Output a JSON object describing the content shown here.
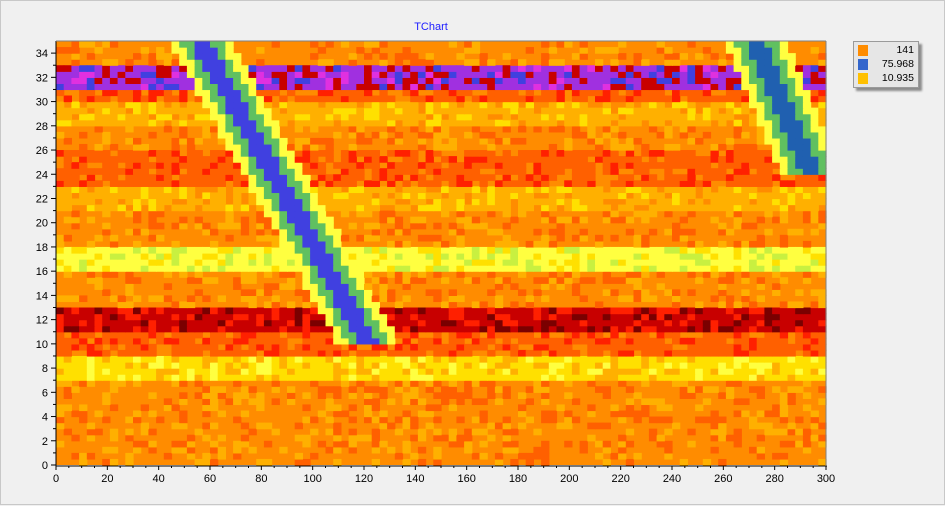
{
  "chart_data": {
    "type": "heatmap",
    "title": "TChart",
    "xlabel": "",
    "ylabel": "",
    "xlim": [
      0,
      300
    ],
    "ylim": [
      0,
      35
    ],
    "x_ticks": [
      "0",
      "20",
      "40",
      "60",
      "80",
      "100",
      "120",
      "140",
      "160",
      "180",
      "200",
      "220",
      "240",
      "260",
      "280",
      "300"
    ],
    "y_ticks": [
      "0",
      "2",
      "4",
      "6",
      "8",
      "10",
      "12",
      "14",
      "16",
      "18",
      "20",
      "22",
      "24",
      "26",
      "28",
      "30",
      "32",
      "34"
    ],
    "legend": {
      "position": "top-right",
      "entries": [
        {
          "label": "141",
          "color": "#ff8c00"
        },
        {
          "label": "75.968",
          "color": "#3366cc"
        },
        {
          "label": "10.935",
          "color": "#ffc000"
        }
      ]
    },
    "color_scale": [
      "#7a0000",
      "#c80000",
      "#ff2000",
      "#ff6000",
      "#ff8c00",
      "#ffb000",
      "#ffe000",
      "#ffff40",
      "#c8f040",
      "#60c060",
      "#30a070",
      "#2060b0",
      "#4040e0",
      "#a030e0",
      "#e030e0"
    ],
    "base_level": 4,
    "bands": [
      {
        "y_from": 0,
        "y_to": 8,
        "level": 4
      },
      {
        "y_from": 7,
        "y_to": 9,
        "level": 6
      },
      {
        "y_from": 9,
        "y_to": 11,
        "level": 3
      },
      {
        "y_from": 11,
        "y_to": 13,
        "level": 1
      },
      {
        "y_from": 13,
        "y_to": 16,
        "level": 4
      },
      {
        "y_from": 16,
        "y_to": 18,
        "level": 7
      },
      {
        "y_from": 18,
        "y_to": 21,
        "level": 4
      },
      {
        "y_from": 21,
        "y_to": 23,
        "level": 5
      },
      {
        "y_from": 23,
        "y_to": 26,
        "level": 3
      },
      {
        "y_from": 26,
        "y_to": 28,
        "level": 4
      },
      {
        "y_from": 28,
        "y_to": 30,
        "level": 5
      },
      {
        "y_from": 30,
        "y_to": 31,
        "level": 3
      },
      {
        "y_from": 31,
        "y_to": 33,
        "level": 13
      },
      {
        "y_from": 33,
        "y_to": 35,
        "level": 4
      }
    ],
    "streaks": [
      {
        "x0": 56,
        "y0": 35,
        "x1": 122,
        "y1": 10,
        "core_level": 12
      },
      {
        "x0": 272,
        "y0": 35,
        "x1": 295,
        "y1": 24,
        "core_level": 11
      }
    ]
  }
}
